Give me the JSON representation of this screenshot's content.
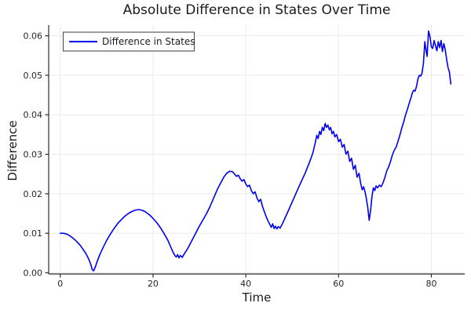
{
  "chart_data": {
    "type": "line",
    "title": "Absolute Difference in States Over Time",
    "xlabel": "Time",
    "ylabel": "Difference",
    "xlim": [
      -2.5,
      87.2
    ],
    "ylim": [
      -0.0003,
      0.0627
    ],
    "grid": true,
    "xticks": {
      "values": [
        0,
        20,
        40,
        60,
        80
      ],
      "labels": [
        "0",
        "20",
        "40",
        "60",
        "80"
      ]
    },
    "yticks": {
      "values": [
        0.0,
        0.01,
        0.02,
        0.03,
        0.04,
        0.05,
        0.06
      ],
      "labels": [
        "0.00",
        "0.01",
        "0.02",
        "0.03",
        "0.04",
        "0.05",
        "0.06"
      ]
    },
    "legend": {
      "position": "top-left",
      "label": "Difference in States"
    },
    "series": [
      {
        "name": "Difference in States",
        "color": "#0000f0",
        "points": [
          [
            0,
            0.01
          ],
          [
            0.7,
            0.01
          ],
          [
            1.4,
            0.0098
          ],
          [
            2,
            0.0094
          ],
          [
            2.6,
            0.0089
          ],
          [
            3.2,
            0.0083
          ],
          [
            3.8,
            0.0076
          ],
          [
            4.4,
            0.0068
          ],
          [
            5,
            0.0058
          ],
          [
            5.6,
            0.0047
          ],
          [
            6.2,
            0.0033
          ],
          [
            6.6,
            0.002
          ],
          [
            6.9,
            0.0008
          ],
          [
            7.2,
            0.0005
          ],
          [
            7.6,
            0.0016
          ],
          [
            8,
            0.003
          ],
          [
            8.6,
            0.0048
          ],
          [
            9.2,
            0.0063
          ],
          [
            10,
            0.0082
          ],
          [
            10.8,
            0.0098
          ],
          [
            11.6,
            0.0112
          ],
          [
            12.4,
            0.0125
          ],
          [
            13.2,
            0.0135
          ],
          [
            14,
            0.0144
          ],
          [
            14.8,
            0.0151
          ],
          [
            15.6,
            0.0156
          ],
          [
            16.3,
            0.0159
          ],
          [
            17,
            0.016
          ],
          [
            17.7,
            0.0158
          ],
          [
            18.4,
            0.0154
          ],
          [
            19.2,
            0.0147
          ],
          [
            20,
            0.0138
          ],
          [
            20.8,
            0.0127
          ],
          [
            21.6,
            0.0114
          ],
          [
            22.4,
            0.0099
          ],
          [
            23.2,
            0.0082
          ],
          [
            23.8,
            0.0066
          ],
          [
            24.3,
            0.0052
          ],
          [
            24.7,
            0.0044
          ],
          [
            25,
            0.004
          ],
          [
            25.3,
            0.0046
          ],
          [
            25.6,
            0.0038
          ],
          [
            25.9,
            0.0044
          ],
          [
            26.3,
            0.0039
          ],
          [
            26.7,
            0.0047
          ],
          [
            27.5,
            0.0062
          ],
          [
            28.3,
            0.008
          ],
          [
            29.1,
            0.0098
          ],
          [
            29.9,
            0.0116
          ],
          [
            30.7,
            0.0133
          ],
          [
            31.5,
            0.0149
          ],
          [
            32.3,
            0.0168
          ],
          [
            33.1,
            0.019
          ],
          [
            33.9,
            0.0212
          ],
          [
            34.7,
            0.023
          ],
          [
            35.3,
            0.0243
          ],
          [
            35.9,
            0.0252
          ],
          [
            36.5,
            0.0257
          ],
          [
            37.1,
            0.0256
          ],
          [
            37.6,
            0.025
          ],
          [
            38,
            0.0244
          ],
          [
            38.4,
            0.0247
          ],
          [
            38.8,
            0.0238
          ],
          [
            39.2,
            0.0232
          ],
          [
            39.6,
            0.0236
          ],
          [
            40,
            0.0225
          ],
          [
            40.4,
            0.0218
          ],
          [
            40.8,
            0.0222
          ],
          [
            41.2,
            0.0208
          ],
          [
            41.6,
            0.02
          ],
          [
            42,
            0.0205
          ],
          [
            42.4,
            0.019
          ],
          [
            42.8,
            0.018
          ],
          [
            43.2,
            0.0186
          ],
          [
            43.6,
            0.0168
          ],
          [
            44,
            0.0155
          ],
          [
            44.4,
            0.0142
          ],
          [
            44.8,
            0.0131
          ],
          [
            45.2,
            0.0122
          ],
          [
            45.5,
            0.0115
          ],
          [
            45.8,
            0.0124
          ],
          [
            46.1,
            0.0112
          ],
          [
            46.4,
            0.0118
          ],
          [
            46.7,
            0.0111
          ],
          [
            47,
            0.0117
          ],
          [
            47.4,
            0.0113
          ],
          [
            47.8,
            0.0122
          ],
          [
            48.2,
            0.0132
          ],
          [
            48.7,
            0.0145
          ],
          [
            49.2,
            0.0158
          ],
          [
            49.8,
            0.0174
          ],
          [
            50.4,
            0.019
          ],
          [
            51,
            0.0206
          ],
          [
            51.6,
            0.0222
          ],
          [
            52.2,
            0.0237
          ],
          [
            52.8,
            0.0252
          ],
          [
            53.4,
            0.027
          ],
          [
            54,
            0.0288
          ],
          [
            54.5,
            0.0305
          ],
          [
            55,
            0.033
          ],
          [
            55.3,
            0.0348
          ],
          [
            55.6,
            0.034
          ],
          [
            55.9,
            0.0358
          ],
          [
            56.2,
            0.035
          ],
          [
            56.5,
            0.0368
          ],
          [
            56.8,
            0.036
          ],
          [
            57.1,
            0.0378
          ],
          [
            57.4,
            0.0368
          ],
          [
            57.7,
            0.0374
          ],
          [
            58,
            0.0362
          ],
          [
            58.3,
            0.0368
          ],
          [
            58.6,
            0.0352
          ],
          [
            58.9,
            0.0358
          ],
          [
            59.2,
            0.0344
          ],
          [
            59.6,
            0.035
          ],
          [
            60,
            0.0332
          ],
          [
            60.4,
            0.0338
          ],
          [
            60.8,
            0.0318
          ],
          [
            61.2,
            0.0325
          ],
          [
            61.6,
            0.03
          ],
          [
            62,
            0.0308
          ],
          [
            62.4,
            0.0282
          ],
          [
            62.8,
            0.029
          ],
          [
            63.2,
            0.0262
          ],
          [
            63.6,
            0.0272
          ],
          [
            64,
            0.0242
          ],
          [
            64.4,
            0.0252
          ],
          [
            64.8,
            0.0225
          ],
          [
            65.1,
            0.021
          ],
          [
            65.4,
            0.0218
          ],
          [
            65.7,
            0.0205
          ],
          [
            66,
            0.0188
          ],
          [
            66.3,
            0.0165
          ],
          [
            66.6,
            0.0133
          ],
          [
            66.9,
            0.0158
          ],
          [
            67.2,
            0.0192
          ],
          [
            67.5,
            0.0215
          ],
          [
            67.8,
            0.0208
          ],
          [
            68.1,
            0.022
          ],
          [
            68.4,
            0.0215
          ],
          [
            68.8,
            0.0222
          ],
          [
            69.2,
            0.0218
          ],
          [
            69.6,
            0.0228
          ],
          [
            70,
            0.0242
          ],
          [
            70.4,
            0.0258
          ],
          [
            70.8,
            0.0268
          ],
          [
            71.2,
            0.0282
          ],
          [
            71.6,
            0.0298
          ],
          [
            72,
            0.031
          ],
          [
            72.4,
            0.0318
          ],
          [
            72.8,
            0.0332
          ],
          [
            73.2,
            0.0348
          ],
          [
            73.6,
            0.0365
          ],
          [
            74,
            0.038
          ],
          [
            74.4,
            0.0398
          ],
          [
            74.8,
            0.0412
          ],
          [
            75.2,
            0.0428
          ],
          [
            75.6,
            0.0443
          ],
          [
            75.9,
            0.0455
          ],
          [
            76.2,
            0.0462
          ],
          [
            76.5,
            0.046
          ],
          [
            76.8,
            0.0472
          ],
          [
            77.1,
            0.049
          ],
          [
            77.4,
            0.05
          ],
          [
            77.7,
            0.0498
          ],
          [
            78,
            0.0505
          ],
          [
            78.3,
            0.053
          ],
          [
            78.6,
            0.0585
          ],
          [
            78.9,
            0.056
          ],
          [
            79.1,
            0.0548
          ],
          [
            79.4,
            0.0612
          ],
          [
            79.7,
            0.0598
          ],
          [
            80,
            0.0572
          ],
          [
            80.3,
            0.0568
          ],
          [
            80.6,
            0.0588
          ],
          [
            80.9,
            0.0575
          ],
          [
            81.2,
            0.0562
          ],
          [
            81.5,
            0.0585
          ],
          [
            81.8,
            0.057
          ],
          [
            82.1,
            0.0588
          ],
          [
            82.4,
            0.056
          ],
          [
            82.7,
            0.058
          ],
          [
            83,
            0.0565
          ],
          [
            83.3,
            0.054
          ],
          [
            83.6,
            0.052
          ],
          [
            83.9,
            0.0508
          ],
          [
            84.2,
            0.0478
          ]
        ]
      }
    ]
  },
  "colors": {
    "line": "#0000f0",
    "grid": "#ebebeb",
    "spine": "#2b2b2b",
    "legend_border": "#4d4d4d",
    "background": "#ffffff"
  }
}
